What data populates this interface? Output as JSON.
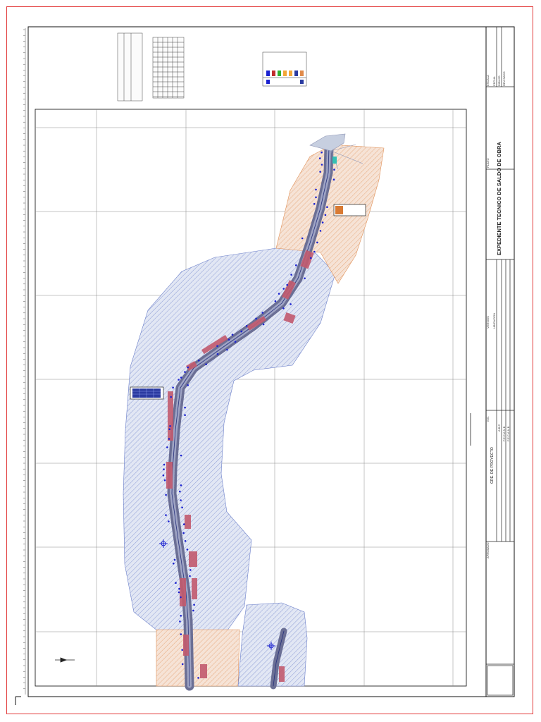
{
  "sheet": {
    "title": "EXPEDIENTE TECNICO DE SALDO DE OBRA",
    "project_label": "GRE. DE PROYECTO",
    "fields": {
      "escala": "ESCALA",
      "fecha": "FECHA",
      "dibujo": "DIBUJO",
      "revisado": "REVISADO",
      "aprobado": "APROBADO",
      "plano": "PLANO",
      "version": "VERSION",
      "ubicacion": "UBICACION",
      "ing": "ING.",
      "dibujante": "A.B.C",
      "rev_initials": "F.E.C.A.N.B",
      "apr_initials": "F.E.C.A.N.B"
    }
  },
  "map": {
    "colors": {
      "influence_blue": "#5b6fc4",
      "influence_orange": "#e08a4a",
      "road": "#6b6f95",
      "parcel": "#c25a6e",
      "marker": "#1b22d0",
      "grid": "#8a8a8a"
    },
    "icons": [
      "north-arrow-icon",
      "survey-point-icon"
    ]
  }
}
